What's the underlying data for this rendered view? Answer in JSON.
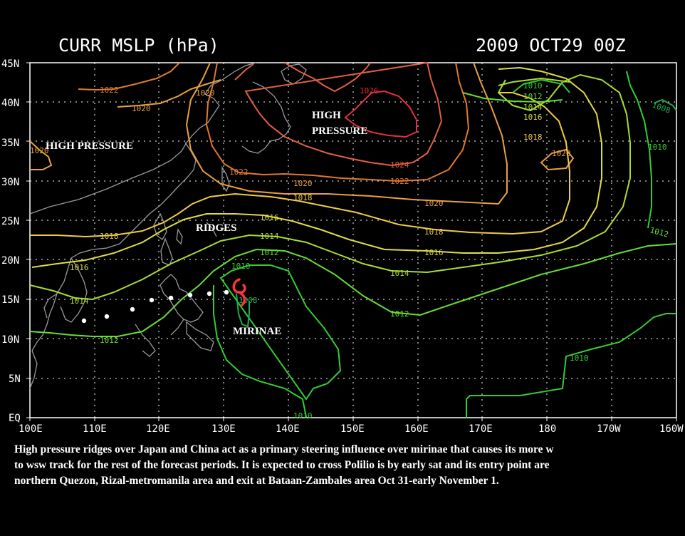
{
  "title_left": "CURR MSLP (hPa)",
  "title_right": "2009 OCT29 00Z",
  "lat_labels": [
    "45N",
    "40N",
    "35N",
    "30N",
    "25N",
    "20N",
    "15N",
    "10N",
    "5N",
    "EQ"
  ],
  "lon_labels": [
    "100E",
    "110E",
    "120E",
    "130E",
    "140E",
    "150E",
    "160E",
    "170E",
    "180",
    "170W",
    "160W"
  ],
  "contours": [
    {
      "label": "1010",
      "color": "#33cc33"
    },
    {
      "label": "1012",
      "color": "#66dd33"
    },
    {
      "label": "1014",
      "color": "#aadd33"
    },
    {
      "label": "1016",
      "color": "#dddd44"
    },
    {
      "label": "1018",
      "color": "#eecc44"
    },
    {
      "label": "1020",
      "color": "#e8a040"
    },
    {
      "label": "1022",
      "color": "#e07a30"
    },
    {
      "label": "1024",
      "color": "#e06040"
    },
    {
      "label": "1026",
      "color": "#e03040"
    },
    {
      "label": "1008",
      "color": "#22aa55"
    }
  ],
  "annotations": {
    "high_pressure_west": "HIGH PRESSURE",
    "high_pressure_north_1": "HIGH",
    "high_pressure_north_2": "PRESSURE",
    "ridges": "RIDGES",
    "storm_name": "MIRINAE"
  },
  "caption": "High pressure ridges over Japan and China act as a primary steering influence over mirinae that causes its more w\nto wsw track for the rest of the forecast periods. It is expected to cross Polilio is by early sat and its entry point are\nnorthern Quezon, Rizal-metromanila area and exit at Bataan-Zambales area Oct 31-early November 1."
}
